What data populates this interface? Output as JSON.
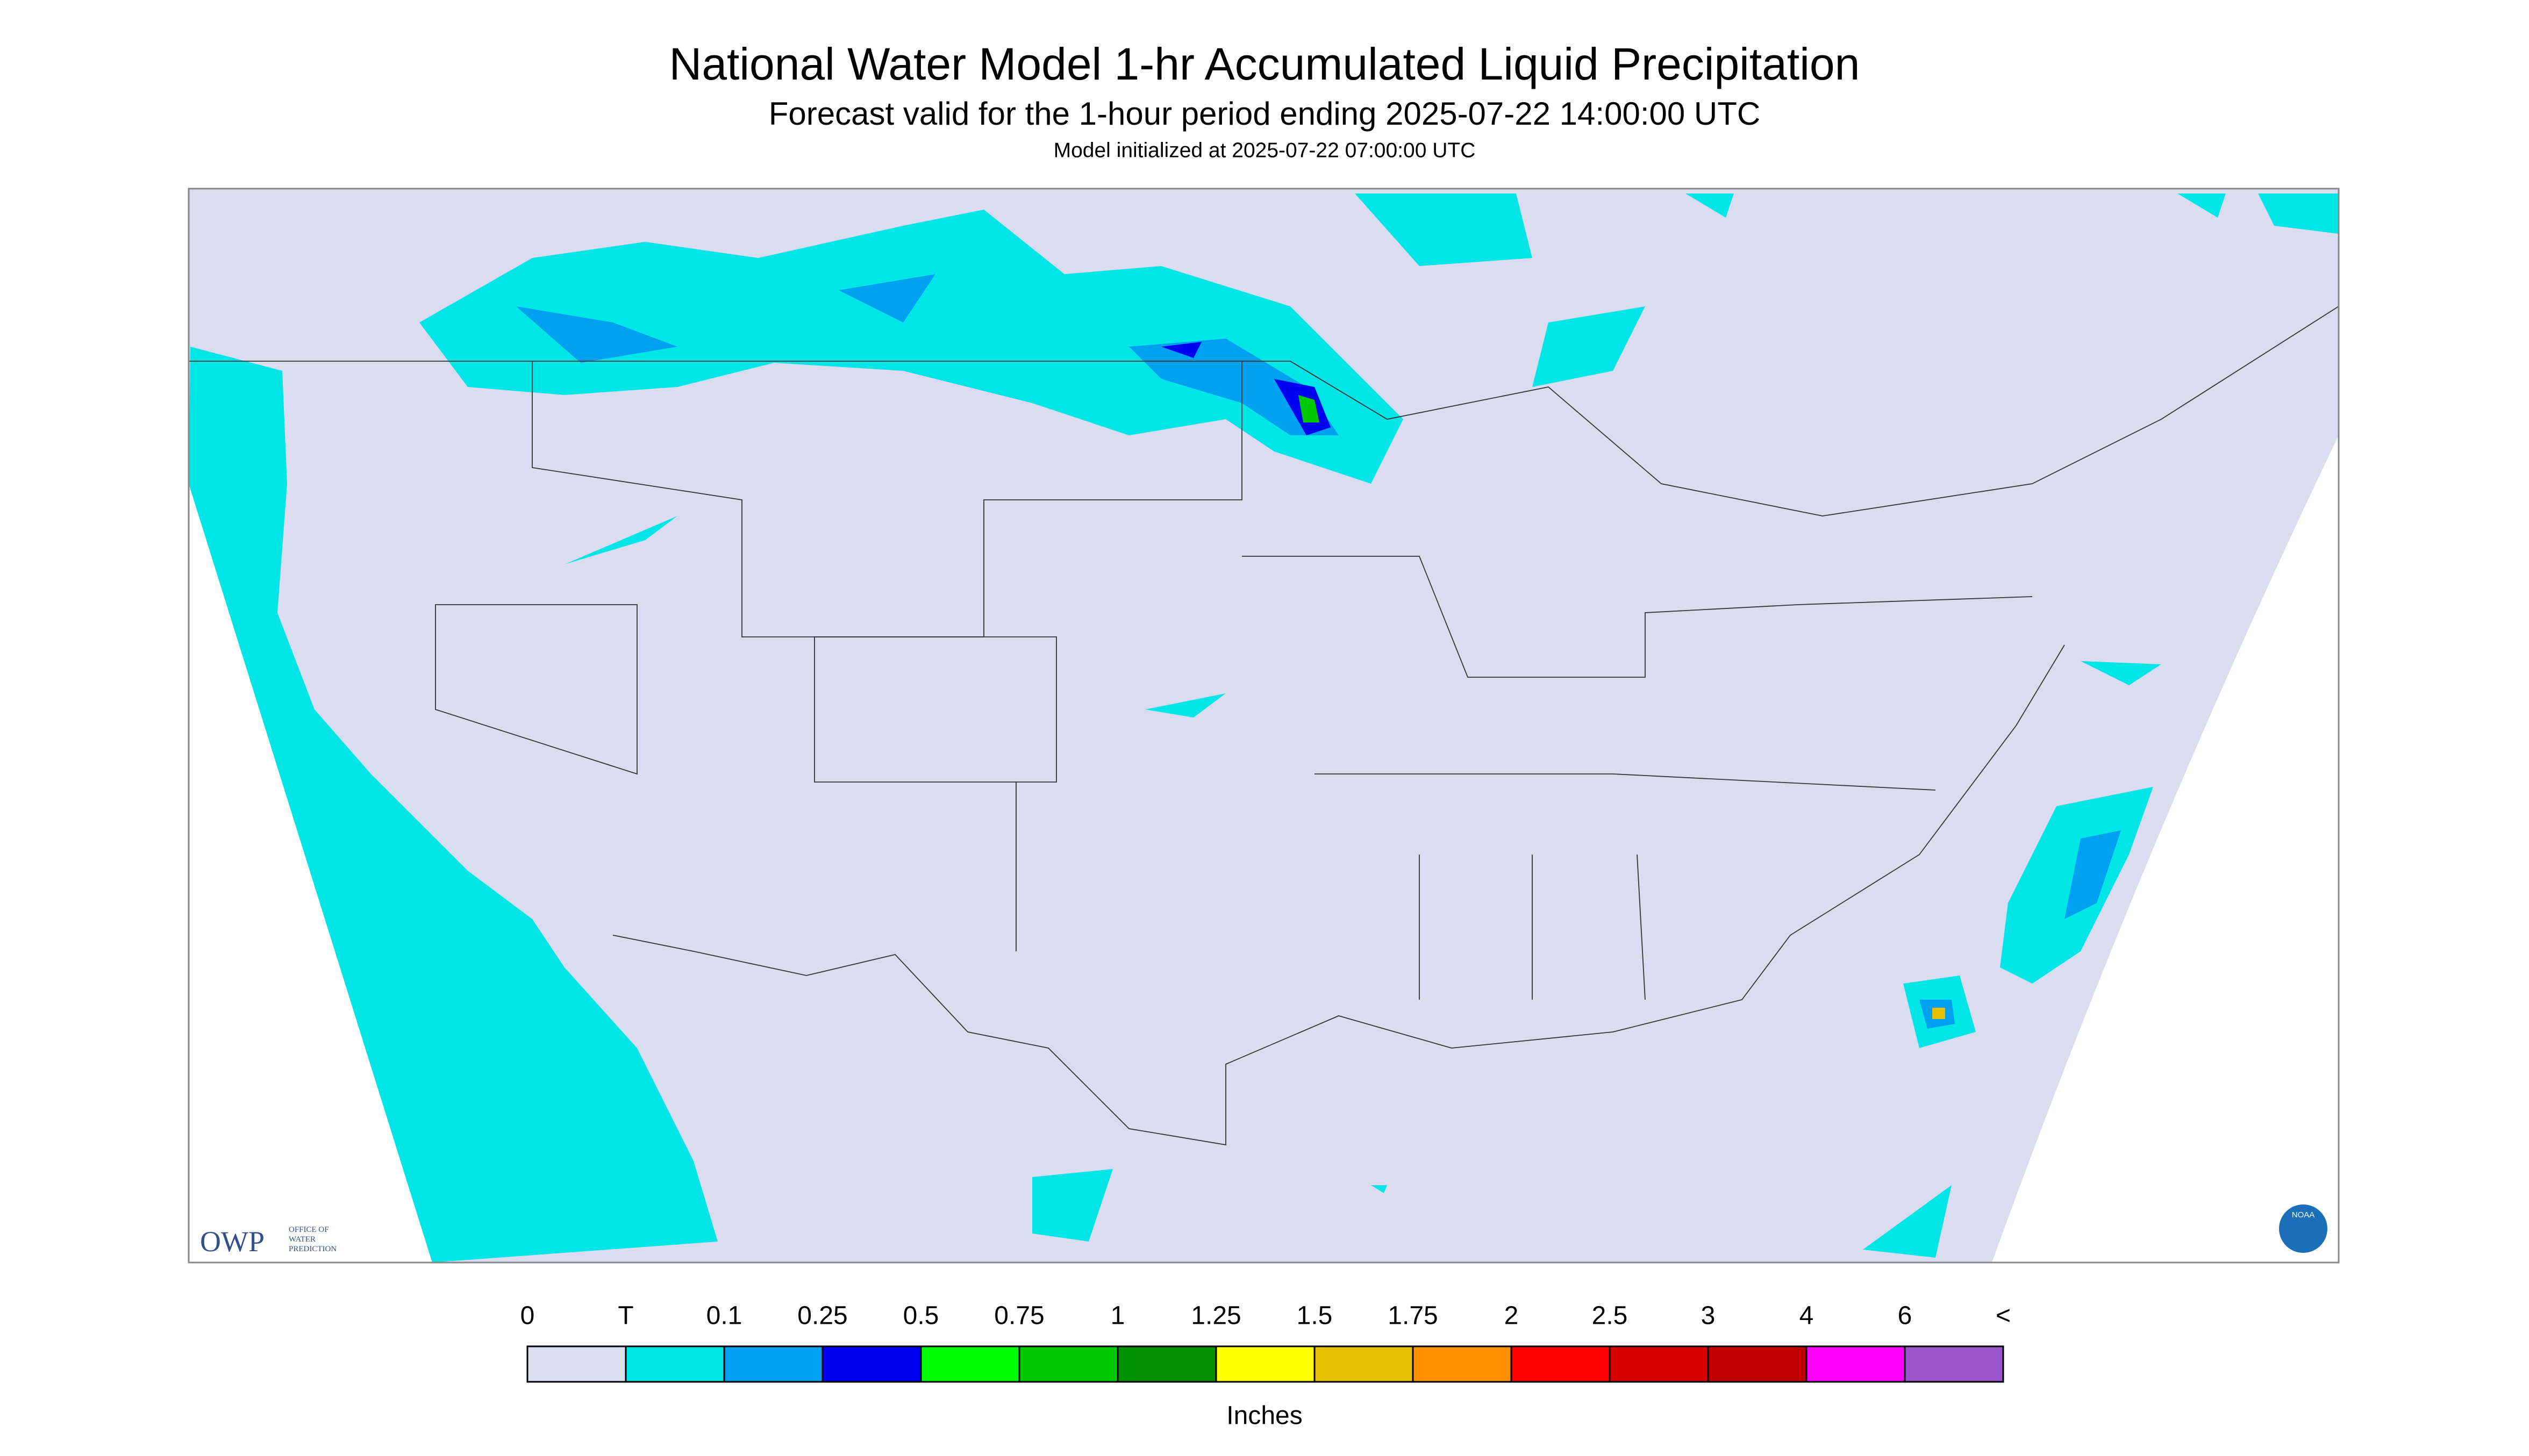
{
  "header": {
    "title": "National Water Model 1-hr Accumulated Liquid Precipitation",
    "subtitle": "Forecast valid for the 1-hour period ending 2025-07-22 14:00:00 UTC",
    "initialized": "Model initialized at 2025-07-22 07:00:00 UTC"
  },
  "logos": {
    "owp": "OWP",
    "owp_text": [
      "OFFICE OF",
      "WATER",
      "PREDICTION"
    ],
    "noaa": "NOAA"
  },
  "legend": {
    "labels": [
      "0",
      "T",
      "0.1",
      "0.25",
      "0.5",
      "0.75",
      "1",
      "1.25",
      "1.5",
      "1.75",
      "2",
      "2.5",
      "3",
      "4",
      "6",
      "<"
    ],
    "colors": [
      "#dcdcf0",
      "#00e6e6",
      "#00a0f0",
      "#0000f0",
      "#00ff00",
      "#00c800",
      "#009000",
      "#ffff00",
      "#e6c000",
      "#ff9000",
      "#ff0000",
      "#d60000",
      "#c00000",
      "#ff00ff",
      "#9955c9"
    ],
    "units": "Inches"
  }
}
